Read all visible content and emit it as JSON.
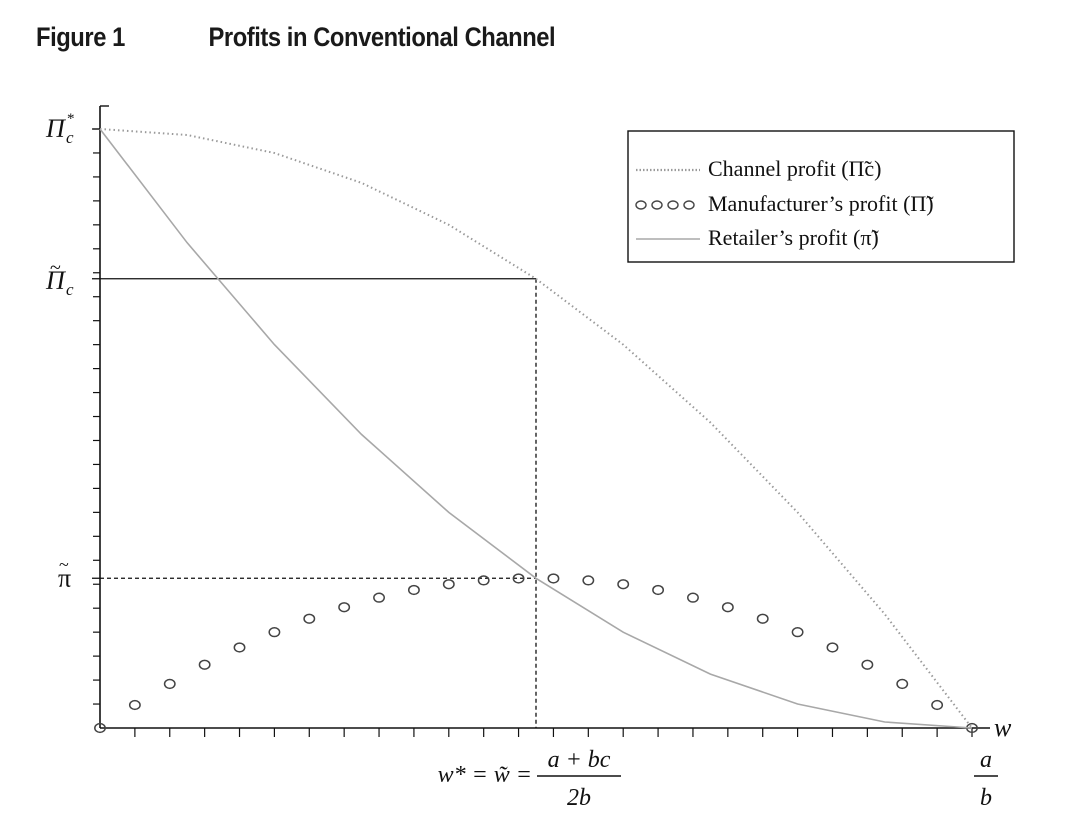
{
  "figure": {
    "label": "Figure 1",
    "title": "Profits in Conventional Channel"
  },
  "chart_data": {
    "type": "line",
    "title": "Profits in Conventional Channel",
    "xlabel": "w",
    "ylabel": "",
    "x_range": [
      0,
      1
    ],
    "y_range": [
      0,
      1
    ],
    "x_tick_labels": [
      {
        "x": 0.5,
        "text_left": "w* = w̃ =",
        "frac_num": "a + bc",
        "frac_den": "2b"
      },
      {
        "x": 1.0,
        "frac_num": "a",
        "frac_den": "b"
      }
    ],
    "y_tick_labels": [
      {
        "y": 1.0,
        "text": "Π*c"
      },
      {
        "y": 0.75,
        "text": "Π̃c"
      },
      {
        "y": 0.25,
        "text": "π̃"
      }
    ],
    "minor_ticks": {
      "x_count": 25,
      "y_count": 25
    },
    "reference_lines": [
      {
        "from": [
          0,
          0.75
        ],
        "to": [
          0.5,
          0.75
        ],
        "style": "solid"
      },
      {
        "from": [
          0.5,
          0.75
        ],
        "to": [
          0.5,
          0
        ],
        "style": "dashed"
      },
      {
        "from": [
          0,
          0.25
        ],
        "to": [
          0.5,
          0.25
        ],
        "style": "dashed"
      }
    ],
    "legend_position": "top-right",
    "series": [
      {
        "name": "Channel profit (Π̃c)",
        "style": "dotted",
        "color": "#9a9a9a",
        "x": [
          0,
          0.1,
          0.2,
          0.3,
          0.4,
          0.5,
          0.6,
          0.7,
          0.8,
          0.9,
          1.0
        ],
        "y": [
          1.0,
          0.99,
          0.96,
          0.91,
          0.84,
          0.75,
          0.64,
          0.51,
          0.36,
          0.19,
          0.0
        ]
      },
      {
        "name": "Manufacturer’s profit (Π̃)",
        "style": "circles",
        "color": "#444444",
        "x": [
          0,
          0.04,
          0.08,
          0.12,
          0.16,
          0.2,
          0.24,
          0.28,
          0.32,
          0.36,
          0.4,
          0.44,
          0.48,
          0.52,
          0.56,
          0.6,
          0.64,
          0.68,
          0.72,
          0.76,
          0.8,
          0.84,
          0.88,
          0.92,
          0.96,
          1.0
        ],
        "y": [
          0,
          0.0384,
          0.0736,
          0.1056,
          0.1344,
          0.16,
          0.1824,
          0.2016,
          0.2176,
          0.2304,
          0.24,
          0.2464,
          0.2496,
          0.2496,
          0.2464,
          0.24,
          0.2304,
          0.2176,
          0.2016,
          0.1824,
          0.16,
          0.1344,
          0.1056,
          0.0736,
          0.0384,
          0
        ]
      },
      {
        "name": "Retailer’s profit (π̃)",
        "style": "solid",
        "color": "#a8a8a8",
        "x": [
          0,
          0.1,
          0.2,
          0.3,
          0.4,
          0.5,
          0.6,
          0.7,
          0.8,
          0.9,
          1.0
        ],
        "y": [
          1.0,
          0.81,
          0.64,
          0.49,
          0.36,
          0.25,
          0.16,
          0.09,
          0.04,
          0.01,
          0.0
        ]
      }
    ]
  }
}
